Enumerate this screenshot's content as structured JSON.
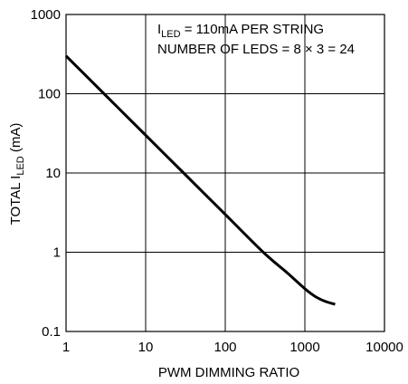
{
  "chart_data": {
    "type": "line",
    "x_scale": "log",
    "y_scale": "log",
    "xlim": [
      1,
      10000
    ],
    "ylim": [
      0.1,
      1000
    ],
    "grid": true,
    "x_ticks": [
      "1",
      "10",
      "100",
      "1000",
      "10000"
    ],
    "y_ticks": [
      "1000",
      "100",
      "10",
      "1",
      "0.1"
    ],
    "xlabel": "PWM DIMMING RATIO",
    "ylabel": {
      "prefix": "TOTAL I",
      "sub": "LED",
      "suffix": " (mA)"
    },
    "annotations": {
      "line1": {
        "prefix": "I",
        "sub": "LED",
        "suffix": " = 110mA PER STRING"
      },
      "line2": "NUMBER OF LEDS = 8 × 3 = 24"
    },
    "series": [
      {
        "x": [
          1,
          3,
          10,
          30,
          100,
          300,
          600,
          900,
          1100,
          1400,
          1800,
          2400
        ],
        "y": [
          300,
          100,
          30,
          10,
          3,
          1,
          0.55,
          0.38,
          0.32,
          0.27,
          0.24,
          0.22
        ]
      }
    ]
  }
}
